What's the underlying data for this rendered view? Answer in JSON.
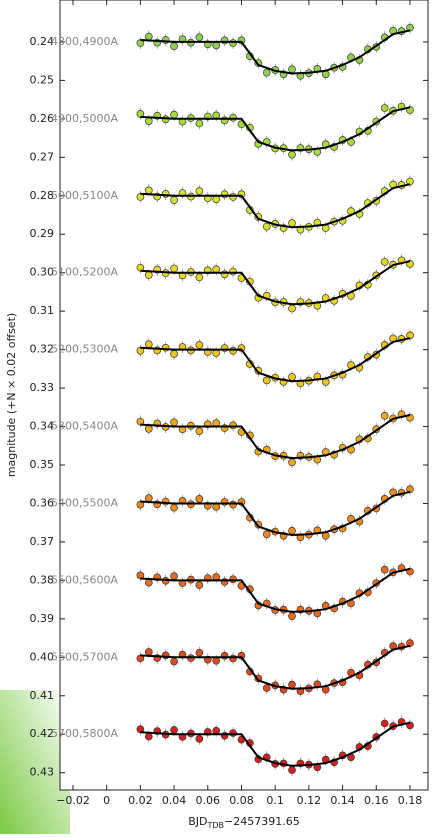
{
  "chart_data": {
    "type": "scatter_model",
    "xlabel": {
      "main": "BJD",
      "sub": "TDB",
      "rest": "−2457391.65"
    },
    "ylabel": "magnitude (+N × 0.02 offset)",
    "xlim": [
      -0.0277,
      0.1907
    ],
    "ylim": [
      0.4345,
      0.2291
    ],
    "y_inverted": true,
    "xticks": [
      {
        "value": -0.02,
        "label": "−0.02"
      },
      0,
      0.02,
      0.04,
      0.06,
      0.08,
      0.1,
      0.12,
      0.14,
      0.16,
      0.18
    ],
    "yticks": [
      0.24,
      0.25,
      0.26,
      0.27,
      0.28,
      0.29,
      {
        "value": 0.3,
        "label": "0.30"
      },
      0.31,
      0.32,
      0.33,
      0.34,
      0.35,
      0.36,
      0.37,
      0.38,
      0.39,
      {
        "value": 0.4,
        "label": "0.40"
      },
      0.41,
      0.42,
      0.43
    ],
    "x": [
      0.02,
      0.025,
      0.03,
      0.035,
      0.04,
      0.045,
      0.05,
      0.055,
      0.06,
      0.065,
      0.07,
      0.075,
      0.08,
      0.085,
      0.09,
      0.095,
      0.1,
      0.105,
      0.11,
      0.115,
      0.12,
      0.125,
      0.13,
      0.135,
      0.14,
      0.145,
      0.15,
      0.155,
      0.16,
      0.165,
      0.17,
      0.175,
      0.18
    ],
    "model_x": [
      0.02,
      0.04,
      0.06,
      0.08,
      0.085,
      0.09,
      0.1,
      0.11,
      0.12,
      0.13,
      0.14,
      0.15,
      0.16,
      0.17,
      0.18
    ],
    "model_color": "#000000",
    "series": [
      {
        "name": "4800,4900A",
        "color": "#8fd14f",
        "values": [
          0.2403,
          0.2386,
          0.2402,
          0.2395,
          0.2411,
          0.2393,
          0.2402,
          0.2388,
          0.2406,
          0.2409,
          0.2396,
          0.2403,
          0.2396,
          0.2437,
          0.2455,
          0.248,
          0.2473,
          0.2484,
          0.2471,
          0.2488,
          0.2481,
          0.247,
          0.2484,
          0.2467,
          0.2465,
          0.244,
          0.2447,
          0.2419,
          0.2413,
          0.2388,
          0.2371,
          0.2372,
          0.2363
        ],
        "model": [
          0.2395,
          0.24,
          0.24,
          0.24,
          0.243,
          0.246,
          0.2475,
          0.2482,
          0.248,
          0.2475,
          0.246,
          0.244,
          0.241,
          0.238,
          0.237
        ]
      },
      {
        "name": "4900,5000A",
        "color": "#a6db3c",
        "values": [
          0.2587,
          0.2606,
          0.2592,
          0.2601,
          0.2589,
          0.2607,
          0.2598,
          0.2612,
          0.2594,
          0.2591,
          0.2604,
          0.2597,
          0.2614,
          0.2623,
          0.2665,
          0.266,
          0.2677,
          0.2676,
          0.2693,
          0.2676,
          0.2679,
          0.2686,
          0.2666,
          0.2673,
          0.2655,
          0.266,
          0.2633,
          0.2631,
          0.2607,
          0.2572,
          0.2579,
          0.2568,
          0.2577
        ],
        "model": [
          0.2595,
          0.26,
          0.26,
          0.26,
          0.263,
          0.266,
          0.2675,
          0.2682,
          0.268,
          0.2675,
          0.266,
          0.264,
          0.261,
          0.258,
          0.257
        ]
      },
      {
        "name": "5000,5100A",
        "color": "#d8e22a",
        "values": [
          0.2803,
          0.2786,
          0.2802,
          0.2795,
          0.2811,
          0.2793,
          0.2802,
          0.2788,
          0.2806,
          0.2809,
          0.2796,
          0.2803,
          0.2796,
          0.2837,
          0.2855,
          0.288,
          0.2873,
          0.2884,
          0.2871,
          0.2888,
          0.2881,
          0.287,
          0.2884,
          0.2867,
          0.2865,
          0.284,
          0.2847,
          0.2819,
          0.2813,
          0.2788,
          0.2771,
          0.2772,
          0.2763
        ],
        "model": [
          0.2795,
          0.28,
          0.28,
          0.28,
          0.283,
          0.286,
          0.2875,
          0.2882,
          0.288,
          0.2875,
          0.286,
          0.284,
          0.281,
          0.278,
          0.277
        ]
      },
      {
        "name": "5100,5200A",
        "color": "#e8d81e",
        "values": [
          0.2987,
          0.3006,
          0.2992,
          0.3001,
          0.2989,
          0.3007,
          0.2998,
          0.3012,
          0.2994,
          0.2991,
          0.3004,
          0.2997,
          0.3014,
          0.3023,
          0.3065,
          0.306,
          0.3077,
          0.3076,
          0.3093,
          0.3076,
          0.3079,
          0.3086,
          0.3066,
          0.3073,
          0.3055,
          0.306,
          0.3033,
          0.3031,
          0.3007,
          0.2972,
          0.2979,
          0.2968,
          0.2977
        ],
        "model": [
          0.2995,
          0.3,
          0.3,
          0.3,
          0.303,
          0.306,
          0.3075,
          0.3082,
          0.308,
          0.3075,
          0.306,
          0.304,
          0.301,
          0.298,
          0.297
        ]
      },
      {
        "name": "5200,5300A",
        "color": "#f0c419",
        "values": [
          0.3203,
          0.3186,
          0.3202,
          0.3195,
          0.3211,
          0.3193,
          0.3202,
          0.3188,
          0.3206,
          0.3209,
          0.3196,
          0.3203,
          0.3196,
          0.3237,
          0.3255,
          0.328,
          0.3273,
          0.3284,
          0.3271,
          0.3288,
          0.3281,
          0.327,
          0.3284,
          0.3267,
          0.3265,
          0.324,
          0.3247,
          0.3219,
          0.3213,
          0.3188,
          0.3171,
          0.3172,
          0.3163
        ],
        "model": [
          0.3195,
          0.32,
          0.32,
          0.32,
          0.323,
          0.326,
          0.3275,
          0.3282,
          0.328,
          0.3275,
          0.326,
          0.324,
          0.321,
          0.318,
          0.317
        ]
      },
      {
        "name": "5300,5400A",
        "color": "#f0a81c",
        "values": [
          0.3387,
          0.3406,
          0.3392,
          0.3401,
          0.3389,
          0.3407,
          0.3398,
          0.3412,
          0.3394,
          0.3391,
          0.3404,
          0.3397,
          0.3414,
          0.3423,
          0.3465,
          0.346,
          0.3477,
          0.3476,
          0.3493,
          0.3476,
          0.3479,
          0.3486,
          0.3466,
          0.3473,
          0.3455,
          0.346,
          0.3433,
          0.3431,
          0.3407,
          0.3372,
          0.3379,
          0.3368,
          0.3377
        ],
        "model": [
          0.3395,
          0.34,
          0.34,
          0.34,
          0.343,
          0.346,
          0.3475,
          0.3482,
          0.348,
          0.3475,
          0.346,
          0.344,
          0.341,
          0.338,
          0.337
        ]
      },
      {
        "name": "5400,5500A",
        "color": "#ee8a1e",
        "values": [
          0.3603,
          0.3586,
          0.3602,
          0.3595,
          0.3611,
          0.3593,
          0.3602,
          0.3588,
          0.3606,
          0.3609,
          0.3596,
          0.3603,
          0.3596,
          0.3637,
          0.3655,
          0.368,
          0.3673,
          0.3684,
          0.3671,
          0.3688,
          0.3681,
          0.367,
          0.3684,
          0.3667,
          0.3665,
          0.364,
          0.3647,
          0.3619,
          0.3613,
          0.3588,
          0.3571,
          0.3572,
          0.3563
        ],
        "model": [
          0.3595,
          0.36,
          0.36,
          0.36,
          0.363,
          0.366,
          0.3675,
          0.3682,
          0.368,
          0.3675,
          0.366,
          0.364,
          0.361,
          0.358,
          0.357
        ]
      },
      {
        "name": "5500,5600A",
        "color": "#e86a1f",
        "values": [
          0.3787,
          0.3806,
          0.3792,
          0.3801,
          0.3789,
          0.3807,
          0.3798,
          0.3812,
          0.3794,
          0.3791,
          0.3804,
          0.3797,
          0.3814,
          0.3823,
          0.3865,
          0.386,
          0.3877,
          0.3876,
          0.3893,
          0.3876,
          0.3879,
          0.3886,
          0.3866,
          0.3873,
          0.3855,
          0.386,
          0.3833,
          0.3831,
          0.3807,
          0.3772,
          0.3779,
          0.3768,
          0.3777
        ],
        "model": [
          0.3795,
          0.38,
          0.38,
          0.38,
          0.383,
          0.386,
          0.3875,
          0.3882,
          0.388,
          0.3875,
          0.386,
          0.384,
          0.381,
          0.378,
          0.377
        ]
      },
      {
        "name": "5600,5700A",
        "color": "#e04a1e",
        "values": [
          0.4003,
          0.3986,
          0.4002,
          0.3995,
          0.4011,
          0.3993,
          0.4002,
          0.3988,
          0.4006,
          0.4009,
          0.3996,
          0.4003,
          0.3996,
          0.4037,
          0.4055,
          0.408,
          0.4073,
          0.4084,
          0.4071,
          0.4088,
          0.4081,
          0.407,
          0.4084,
          0.4067,
          0.4065,
          0.404,
          0.4047,
          0.4019,
          0.4013,
          0.3988,
          0.3971,
          0.3972,
          0.3963
        ],
        "model": [
          0.3995,
          0.4,
          0.4,
          0.4,
          0.403,
          0.406,
          0.4075,
          0.4082,
          0.408,
          0.4075,
          0.406,
          0.404,
          0.401,
          0.398,
          0.397
        ]
      },
      {
        "name": "5700,5800A",
        "color": "#d42020",
        "values": [
          0.4187,
          0.4206,
          0.4192,
          0.4201,
          0.4189,
          0.4207,
          0.4198,
          0.4212,
          0.4194,
          0.4191,
          0.4204,
          0.4197,
          0.4214,
          0.4223,
          0.4265,
          0.426,
          0.4277,
          0.4276,
          0.4293,
          0.4276,
          0.4279,
          0.4286,
          0.4266,
          0.4273,
          0.4255,
          0.426,
          0.4233,
          0.4231,
          0.4207,
          0.4172,
          0.4179,
          0.4168,
          0.4177
        ],
        "model": [
          0.4195,
          0.42,
          0.42,
          0.42,
          0.423,
          0.426,
          0.4275,
          0.4282,
          0.428,
          0.4275,
          0.426,
          0.424,
          0.421,
          0.418,
          0.417
        ]
      }
    ]
  }
}
